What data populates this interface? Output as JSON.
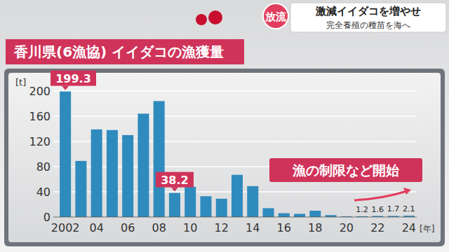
{
  "header": {
    "badge": "放流",
    "headline": "激減イイダコを増やせ",
    "subhead": "完全養殖の種苗を海へ"
  },
  "chart_data": {
    "type": "bar",
    "title": "香川県(6漁協) イイダコの漁獲量",
    "y_label": "[t]",
    "x_label": "[年]",
    "annotations": [
      "漁の制限など開始"
    ],
    "categories": [
      "2002",
      null,
      "04",
      null,
      "06",
      null,
      "08",
      null,
      "10",
      null,
      "12",
      null,
      "14",
      null,
      "16",
      null,
      "18",
      null,
      "20",
      null,
      "22",
      null,
      "24"
    ],
    "values": [
      199.3,
      89,
      139,
      138,
      130,
      164,
      184,
      38.2,
      48,
      33,
      29,
      67,
      49,
      14,
      6,
      5,
      10,
      3,
      1,
      1.2,
      1.6,
      1.7,
      2.1
    ],
    "value_labels": [
      "199.3",
      null,
      null,
      null,
      null,
      null,
      null,
      "38.2",
      null,
      null,
      null,
      null,
      null,
      null,
      null,
      null,
      null,
      null,
      null,
      "1.2",
      "1.6",
      "1.7",
      "2.1"
    ],
    "data_labels": true,
    "color": "#2f8bbd",
    "ylim": [
      0,
      200
    ],
    "yticks": [
      0,
      40,
      80,
      120,
      160,
      200
    ],
    "grid": true
  }
}
